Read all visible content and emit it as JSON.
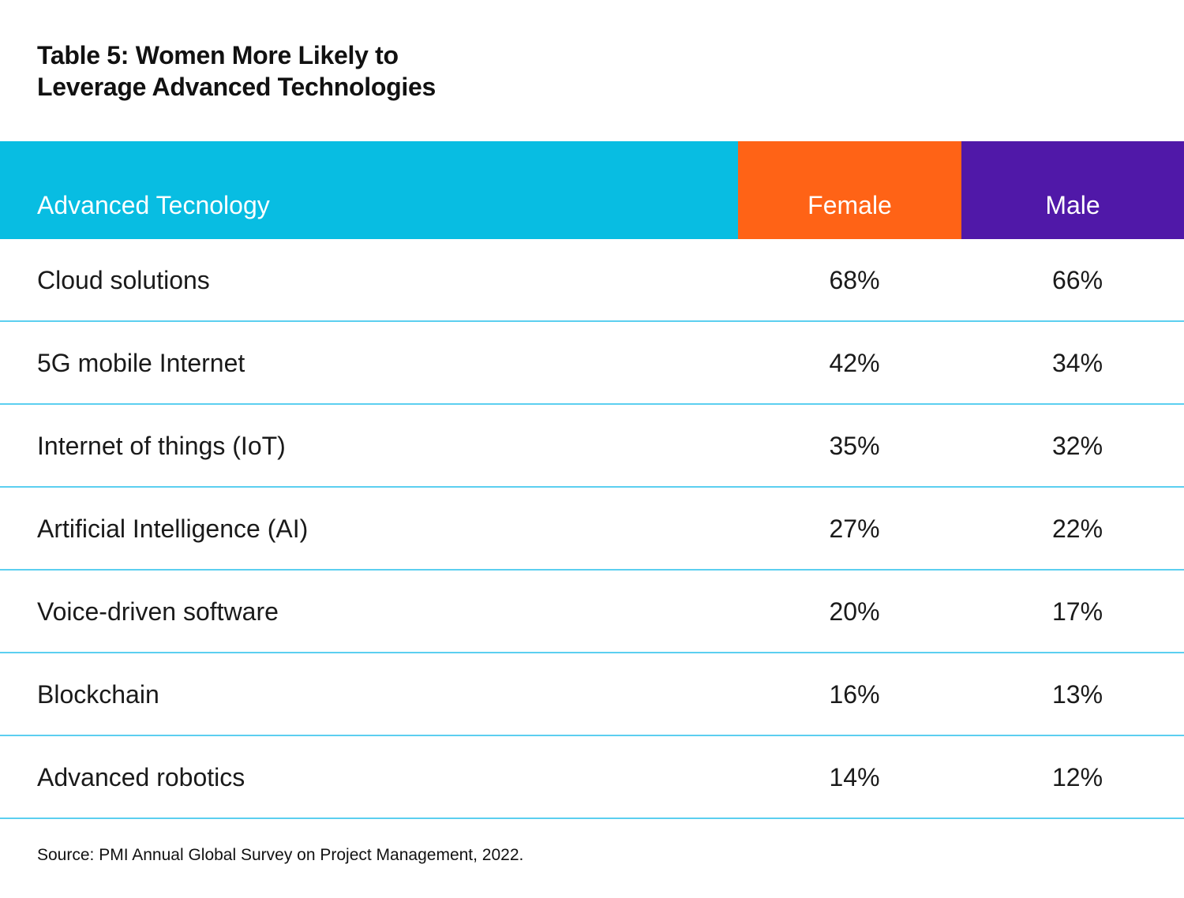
{
  "title": {
    "line1": "Table 5: Women More Likely to",
    "line2": "Leverage Advanced Technologies"
  },
  "colors": {
    "tech_header": "#08bde2",
    "female_header": "#ff6316",
    "male_header": "#5018a8",
    "row_divider": "#5ccff0"
  },
  "header": {
    "tech": "Advanced Tecnology",
    "female": "Female",
    "male": "Male"
  },
  "rows": [
    {
      "tech": "Cloud solutions",
      "female": "68%",
      "male": "66%"
    },
    {
      "tech": "5G mobile Internet",
      "female": "42%",
      "male": "34%"
    },
    {
      "tech": "Internet of things (IoT)",
      "female": "35%",
      "male": "32%"
    },
    {
      "tech": "Artificial Intelligence (AI)",
      "female": "27%",
      "male": "22%"
    },
    {
      "tech": "Voice-driven software",
      "female": "20%",
      "male": "17%"
    },
    {
      "tech": "Blockchain",
      "female": "16%",
      "male": "13%"
    },
    {
      "tech": "Advanced robotics",
      "female": "14%",
      "male": "12%"
    }
  ],
  "source": "Source: PMI Annual Global Survey on Project Management, 2022."
}
